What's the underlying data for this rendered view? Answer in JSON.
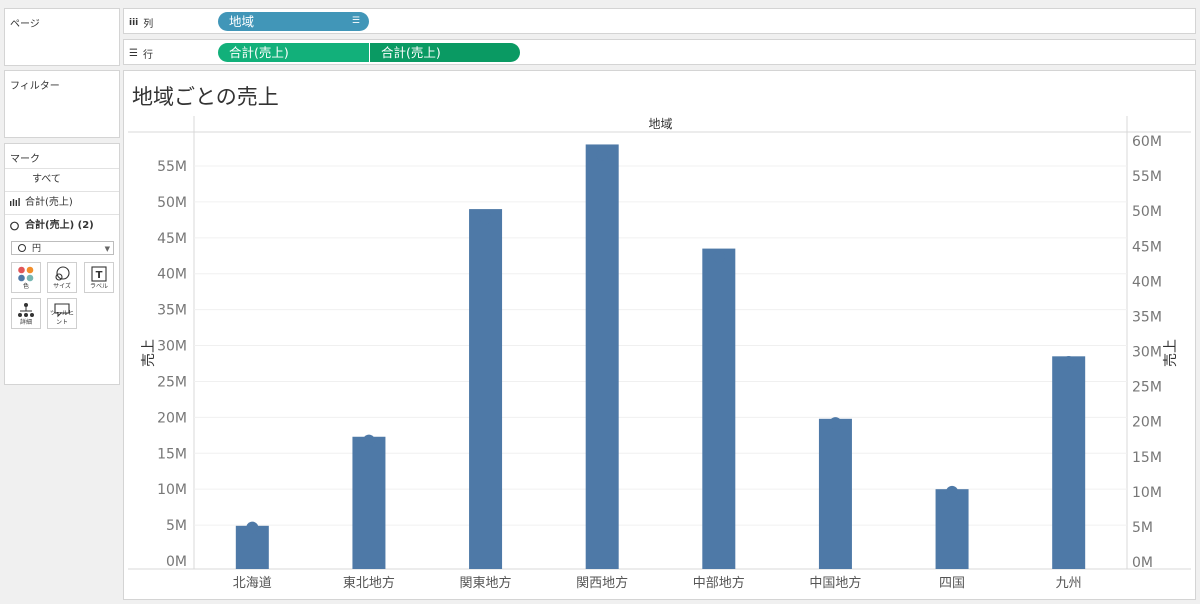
{
  "left_pane": {
    "pages_title": "ページ",
    "filters_title": "フィルター",
    "marks_title": "マーク",
    "marks_rows": [
      {
        "label": "すべて"
      },
      {
        "label": "合計(売上)"
      },
      {
        "label": "合計(売上) (2)"
      }
    ],
    "mark_type": "円",
    "mark_buttons": [
      {
        "label": "色",
        "icon": "color-icon"
      },
      {
        "label": "サイズ",
        "icon": "size-icon"
      },
      {
        "label": "ラベル",
        "icon": "label-icon"
      },
      {
        "label": "詳細",
        "icon": "detail-icon"
      },
      {
        "label": "ツールヒント",
        "icon": "tooltip-icon"
      }
    ]
  },
  "shelves": {
    "columns_label": "列",
    "rows_label": "行",
    "columns_pill": "地域",
    "rows_pill_1": "合計(売上)",
    "rows_pill_2": "合計(売上)"
  },
  "sheet": {
    "title": "地域ごとの売上"
  },
  "colors": {
    "bar": "#4e79a7",
    "pill_blue": "#4196b8",
    "pill_green": "#12b07a",
    "pill_green_dark": "#0a9a63"
  },
  "chart_data": {
    "type": "bar",
    "header_label": "地域",
    "categories": [
      "北海道",
      "東北地方",
      "関東地方",
      "関西地方",
      "中部地方",
      "中国地方",
      "四国",
      "九州"
    ],
    "values": [
      4.9,
      17.3,
      49.0,
      58.0,
      43.5,
      19.8,
      10.0,
      28.5
    ],
    "value_unit": "M",
    "left_axis": {
      "label": "売上",
      "ticks": [
        0,
        5,
        10,
        15,
        20,
        25,
        30,
        35,
        40,
        45,
        50,
        55
      ],
      "tick_labels": [
        "0M",
        "5M",
        "10M",
        "15M",
        "20M",
        "25M",
        "30M",
        "35M",
        "40M",
        "45M",
        "50M",
        "55M"
      ]
    },
    "right_axis": {
      "label": "売上",
      "ticks": [
        0,
        5,
        10,
        15,
        20,
        25,
        30,
        35,
        40,
        45,
        50,
        55,
        60
      ],
      "tick_labels": [
        "0M",
        "5M",
        "10M",
        "15M",
        "20M",
        "25M",
        "30M",
        "35M",
        "40M",
        "45M",
        "50M",
        "55M",
        "60M"
      ]
    },
    "grid": true
  }
}
